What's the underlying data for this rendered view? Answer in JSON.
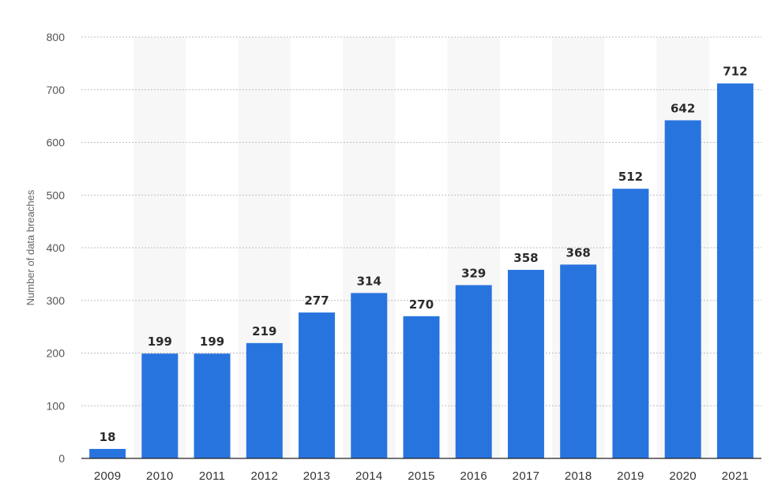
{
  "chart_data": {
    "type": "bar",
    "title": "",
    "xlabel": "",
    "ylabel": "Number of data breaches",
    "categories": [
      "2009",
      "2010",
      "2011",
      "2012",
      "2013",
      "2014",
      "2015",
      "2016",
      "2017",
      "2018",
      "2019",
      "2020",
      "2021"
    ],
    "values": [
      18,
      199,
      199,
      219,
      277,
      314,
      270,
      329,
      358,
      368,
      512,
      642,
      712
    ],
    "value_labels": [
      "18",
      "199",
      "199",
      "219",
      "277",
      "314",
      "270",
      "329",
      "358",
      "368",
      "512",
      "642",
      "712"
    ],
    "ylim": [
      0,
      800
    ],
    "yticks": [
      0,
      100,
      200,
      300,
      400,
      500,
      600,
      700,
      800
    ],
    "ytick_labels": [
      "0",
      "100",
      "200",
      "300",
      "400",
      "500",
      "600",
      "700",
      "800"
    ],
    "grid": true,
    "alternate_column_shading": true,
    "bar_color": "#2874df",
    "column_shade_color": "#f7f7f7",
    "grid_color": "#bdbdbd"
  }
}
